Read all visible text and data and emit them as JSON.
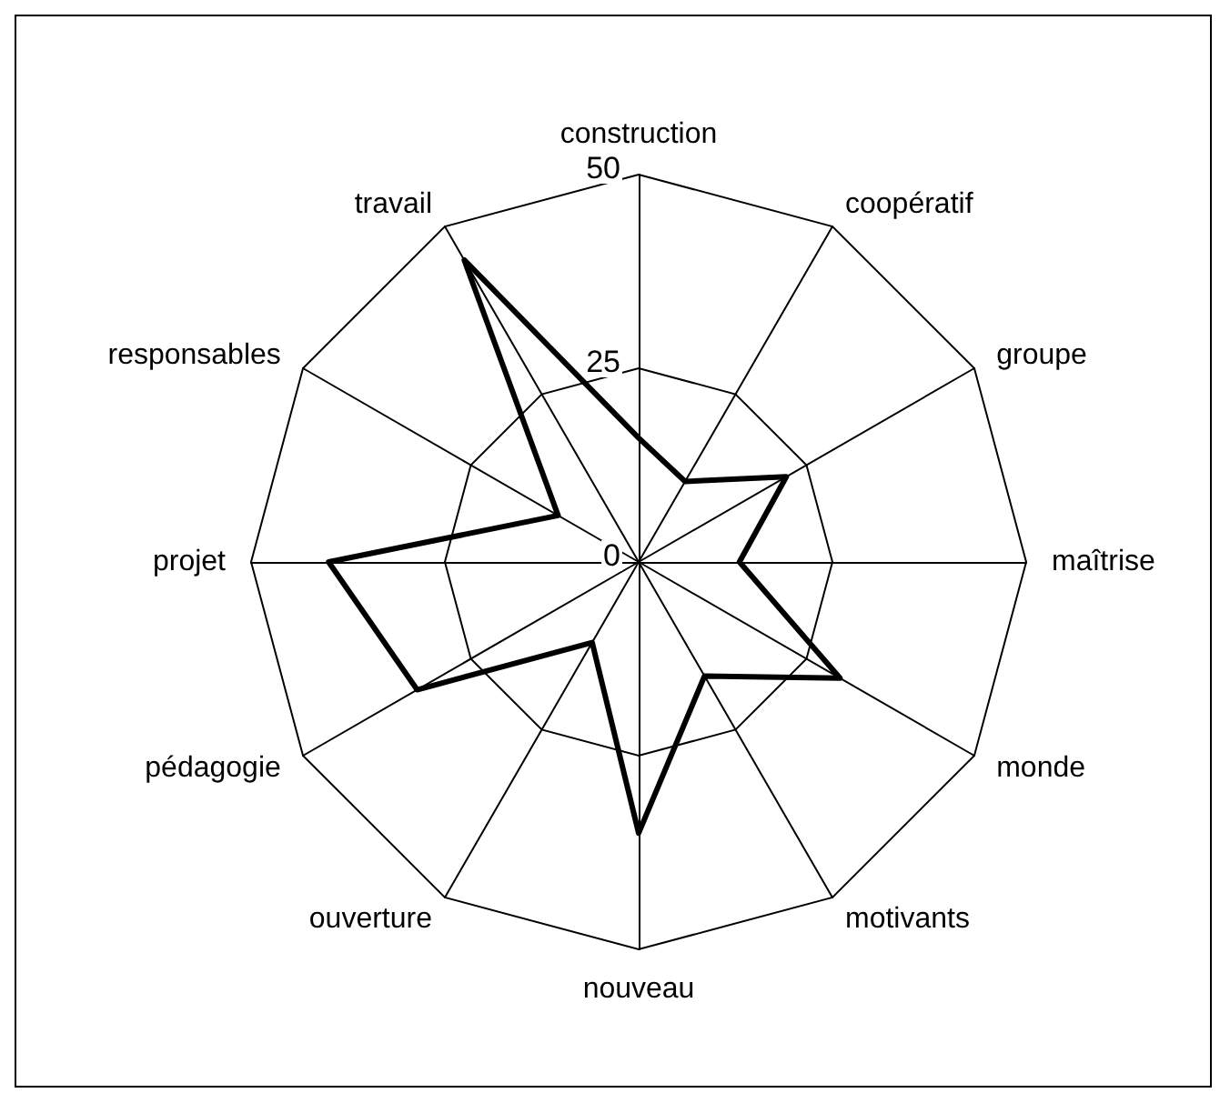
{
  "chart_data": {
    "type": "radar",
    "categories": [
      "construction",
      "coopératif",
      "groupe",
      "maîtrise",
      "monde",
      "motivants",
      "nouveau",
      "ouverture",
      "pédagogie",
      "projet",
      "responsables",
      "travail"
    ],
    "series": [
      {
        "color": "#000000",
        "values": [
          16,
          12,
          22,
          13,
          30,
          17,
          35,
          12,
          33,
          40,
          12,
          45
        ]
      }
    ],
    "ylim": [
      0,
      50
    ],
    "yticks": [
      0,
      25,
      50
    ],
    "marker": "none",
    "line_style": "solid"
  }
}
